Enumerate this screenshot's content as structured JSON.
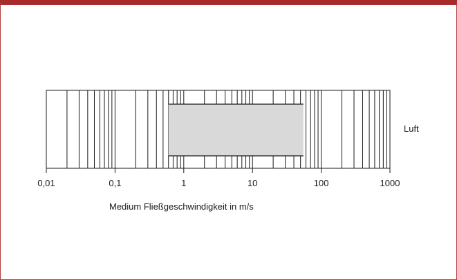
{
  "chart_data": {
    "type": "bar",
    "x_scale": "log",
    "xlim": [
      0.01,
      1000
    ],
    "xticks": [
      {
        "value": 0.01,
        "label": "0,01"
      },
      {
        "value": 0.1,
        "label": "0,1"
      },
      {
        "value": 1,
        "label": "1"
      },
      {
        "value": 10,
        "label": "10"
      },
      {
        "value": 100,
        "label": "100"
      },
      {
        "value": 1000,
        "label": "1000"
      }
    ],
    "xlabel": "Medium Fließgeschwindigkeit in m/s",
    "grid": true,
    "series": [
      {
        "name": "Luft",
        "range": [
          0.6,
          55
        ],
        "color": "#d9d9d9"
      }
    ]
  },
  "colors": {
    "frame_border": "#a82a2a",
    "range_fill": "#d9d9d9",
    "grid_line": "#1a1a1a"
  }
}
